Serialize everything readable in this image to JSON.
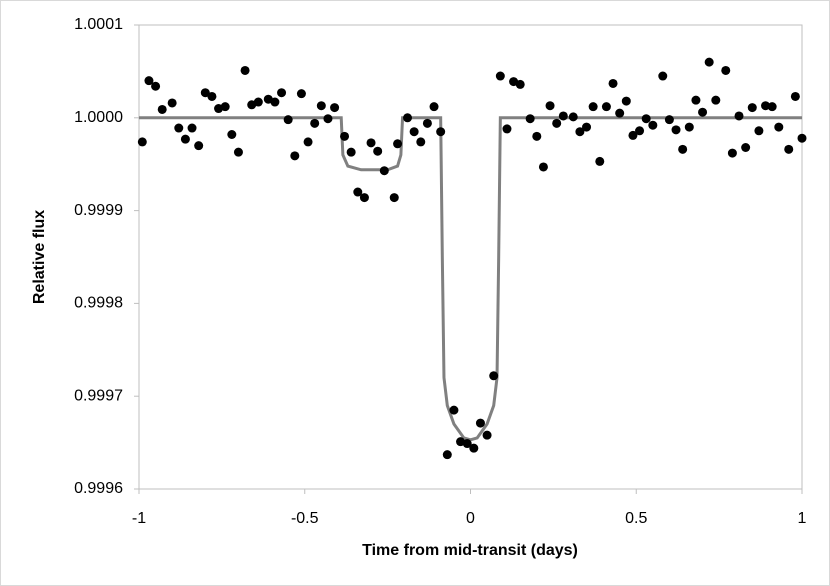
{
  "chart_data": {
    "type": "scatter",
    "xlabel": "Time from mid-transit (days)",
    "ylabel": "Relative flux",
    "xlim": [
      -1,
      1
    ],
    "xticks": [
      -1,
      -0.5,
      0,
      0.5,
      1
    ],
    "ylim": [
      0.9996,
      1.0001
    ],
    "yticks": [
      {
        "value": 0.9996,
        "label": "0.9996"
      },
      {
        "value": 0.9997,
        "label": "0.9997"
      },
      {
        "value": 0.9998,
        "label": "0.9998"
      },
      {
        "value": 0.9999,
        "label": "0.9999"
      },
      {
        "value": 1.0,
        "label": "1.0000"
      },
      {
        "value": 1.0001,
        "label": "1.0001"
      }
    ],
    "grid": false,
    "series": [
      {
        "type": "scatter",
        "color": "#000000",
        "x": [
          -0.99,
          -0.97,
          -0.95,
          -0.93,
          -0.9,
          -0.88,
          -0.86,
          -0.84,
          -0.82,
          -0.8,
          -0.78,
          -0.76,
          -0.74,
          -0.72,
          -0.7,
          -0.68,
          -0.66,
          -0.64,
          -0.61,
          -0.59,
          -0.57,
          -0.55,
          -0.53,
          -0.51,
          -0.49,
          -0.47,
          -0.45,
          -0.43,
          -0.41,
          -0.38,
          -0.36,
          -0.34,
          -0.32,
          -0.3,
          -0.28,
          -0.26,
          -0.23,
          -0.22,
          -0.19,
          -0.17,
          -0.15,
          -0.13,
          -0.11,
          -0.09,
          -0.07,
          -0.05,
          -0.03,
          -0.01,
          0.01,
          0.03,
          0.05,
          0.07,
          0.09,
          0.11,
          0.13,
          0.15,
          0.18,
          0.2,
          0.22,
          0.24,
          0.26,
          0.28,
          0.31,
          0.33,
          0.35,
          0.37,
          0.39,
          0.41,
          0.43,
          0.45,
          0.47,
          0.49,
          0.51,
          0.53,
          0.55,
          0.58,
          0.6,
          0.62,
          0.64,
          0.66,
          0.68,
          0.7,
          0.72,
          0.74,
          0.77,
          0.79,
          0.81,
          0.83,
          0.85,
          0.87,
          0.89,
          0.91,
          0.93,
          0.96,
          0.98,
          1.0
        ],
        "values": [
          0.999974,
          1.00004,
          1.000034,
          1.000009,
          1.000016,
          0.999989,
          0.999977,
          0.999989,
          0.99997,
          1.000027,
          1.000023,
          1.00001,
          1.000012,
          0.999982,
          0.999963,
          1.000051,
          1.000014,
          1.000017,
          1.00002,
          1.000017,
          1.000027,
          0.999998,
          0.999959,
          1.000026,
          0.999974,
          0.999994,
          1.000013,
          0.999999,
          1.000011,
          0.99998,
          0.999963,
          0.99992,
          0.999914,
          0.999973,
          0.999964,
          0.999943,
          0.999914,
          0.999972,
          1.0,
          0.999985,
          0.999974,
          0.999994,
          1.000012,
          0.999985,
          0.999637,
          0.999685,
          0.999651,
          0.999649,
          0.999644,
          0.999671,
          0.999658,
          0.999722,
          1.000045,
          0.999988,
          1.000039,
          1.000036,
          0.999999,
          0.99998,
          0.999947,
          1.000013,
          0.999994,
          1.000002,
          1.000001,
          0.999985,
          0.99999,
          1.000012,
          0.999953,
          1.000012,
          1.000037,
          1.000005,
          1.000018,
          0.999981,
          0.999986,
          0.999999,
          0.999992,
          1.000045,
          0.999998,
          0.999987,
          0.999966,
          0.99999,
          1.000019,
          1.000006,
          1.00006,
          1.000019,
          1.000051,
          0.999962,
          1.000002,
          0.999968,
          1.000011,
          0.999986,
          1.000013,
          1.000012,
          0.99999,
          0.999966,
          1.000023,
          0.999978
        ]
      },
      {
        "type": "line",
        "color": "#808080",
        "x": [
          -1,
          -0.39,
          -0.385,
          -0.37,
          -0.33,
          -0.3,
          -0.25,
          -0.22,
          -0.21,
          -0.205,
          -0.09,
          -0.085,
          -0.08,
          -0.07,
          -0.05,
          -0.02,
          0,
          0.02,
          0.05,
          0.07,
          0.08,
          0.085,
          0.09,
          1
        ],
        "values": [
          1.0,
          1.0,
          0.99996,
          0.999948,
          0.999944,
          0.999944,
          0.999944,
          0.999948,
          0.99996,
          1.0,
          1.0,
          0.99985,
          0.99972,
          0.99969,
          0.99967,
          0.999655,
          0.999653,
          0.999655,
          0.99967,
          0.99969,
          0.99972,
          0.99985,
          1.0,
          1.0
        ]
      }
    ]
  }
}
